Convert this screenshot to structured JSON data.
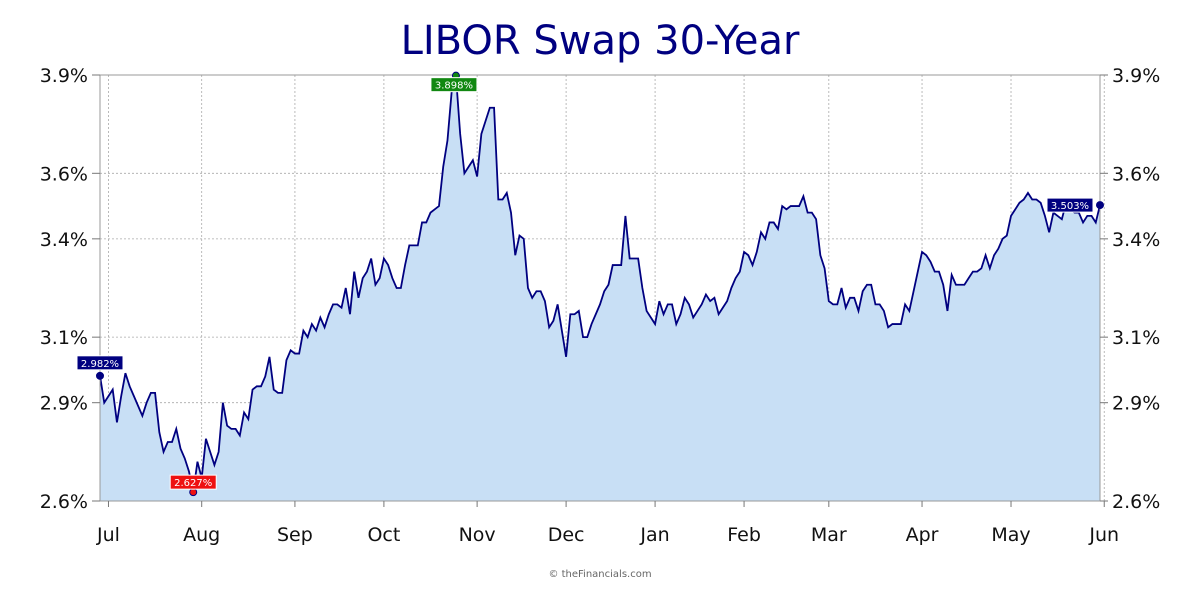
{
  "chart_data": {
    "type": "area",
    "title": "LIBOR Swap 30-Year",
    "credit": "© theFinancials.com",
    "ylim": [
      2.6,
      3.9
    ],
    "y_ticks": [
      2.6,
      2.9,
      3.1,
      3.4,
      3.6,
      3.9
    ],
    "y_tick_labels": [
      "2.6%",
      "2.9%",
      "3.1%",
      "3.4%",
      "3.6%",
      "3.9%"
    ],
    "x_tick_labels": [
      "Jul",
      "Aug",
      "Sep",
      "Oct",
      "Nov",
      "Dec",
      "Jan",
      "Feb",
      "Mar",
      "Apr",
      "May",
      "Jun"
    ],
    "x_tick_day_index": [
      2,
      24,
      46,
      67,
      89,
      110,
      131,
      152,
      172,
      194,
      215,
      237
    ],
    "grid": true,
    "y_axis_both_sides": true,
    "line_color": "#000080",
    "fill_color": "#c8dff5",
    "series": [
      {
        "values": [
          2.982,
          2.9,
          2.92,
          2.94,
          2.84,
          2.92,
          2.99,
          2.95,
          2.92,
          2.89,
          2.86,
          2.9,
          2.93,
          2.93,
          2.81,
          2.75,
          2.78,
          2.78,
          2.82,
          2.76,
          2.73,
          2.69,
          2.627,
          2.72,
          2.67,
          2.79,
          2.75,
          2.71,
          2.75,
          2.9,
          2.83,
          2.82,
          2.82,
          2.8,
          2.87,
          2.85,
          2.94,
          2.95,
          2.95,
          2.98,
          3.04,
          2.94,
          2.93,
          2.93,
          3.03,
          3.06,
          3.05,
          3.05,
          3.12,
          3.1,
          3.14,
          3.12,
          3.16,
          3.13,
          3.17,
          3.2,
          3.2,
          3.19,
          3.25,
          3.17,
          3.3,
          3.22,
          3.28,
          3.3,
          3.34,
          3.26,
          3.28,
          3.34,
          3.32,
          3.28,
          3.25,
          3.25,
          3.32,
          3.38,
          3.38,
          3.38,
          3.45,
          3.45,
          3.48,
          3.49,
          3.5,
          3.62,
          3.7,
          3.85,
          3.898,
          3.72,
          3.6,
          3.62,
          3.64,
          3.59,
          3.72,
          3.76,
          3.8,
          3.8,
          3.52,
          3.52,
          3.54,
          3.48,
          3.35,
          3.41,
          3.4,
          3.25,
          3.22,
          3.24,
          3.24,
          3.21,
          3.13,
          3.15,
          3.2,
          3.12,
          3.04,
          3.17,
          3.17,
          3.18,
          3.1,
          3.1,
          3.14,
          3.17,
          3.2,
          3.24,
          3.26,
          3.32,
          3.32,
          3.32,
          3.47,
          3.34,
          3.34,
          3.34,
          3.25,
          3.18,
          3.16,
          3.14,
          3.21,
          3.17,
          3.2,
          3.2,
          3.14,
          3.17,
          3.22,
          3.2,
          3.16,
          3.18,
          3.2,
          3.23,
          3.21,
          3.22,
          3.17,
          3.19,
          3.21,
          3.25,
          3.28,
          3.3,
          3.36,
          3.35,
          3.32,
          3.36,
          3.42,
          3.4,
          3.45,
          3.45,
          3.43,
          3.5,
          3.49,
          3.5,
          3.5,
          3.5,
          3.53,
          3.48,
          3.48,
          3.46,
          3.35,
          3.31,
          3.21,
          3.2,
          3.2,
          3.25,
          3.19,
          3.22,
          3.22,
          3.18,
          3.24,
          3.26,
          3.26,
          3.2,
          3.2,
          3.18,
          3.13,
          3.14,
          3.14,
          3.14,
          3.2,
          3.18,
          3.24,
          3.3,
          3.36,
          3.35,
          3.33,
          3.3,
          3.3,
          3.26,
          3.18,
          3.29,
          3.26,
          3.26,
          3.26,
          3.28,
          3.3,
          3.3,
          3.31,
          3.35,
          3.31,
          3.35,
          3.37,
          3.4,
          3.41,
          3.47,
          3.49,
          3.51,
          3.52,
          3.54,
          3.52,
          3.52,
          3.51,
          3.47,
          3.42,
          3.48,
          3.47,
          3.46,
          3.51,
          3.49,
          3.48,
          3.48,
          3.45,
          3.47,
          3.47,
          3.45,
          3.503
        ]
      }
    ],
    "annotations": {
      "first_label": "2.982%",
      "low_label": "2.627%",
      "high_label": "3.898%",
      "last_label": "3.503%",
      "low_color": "#ee1111",
      "high_color": "#118811",
      "last_color": "#000080",
      "first_color": "#000080"
    }
  }
}
